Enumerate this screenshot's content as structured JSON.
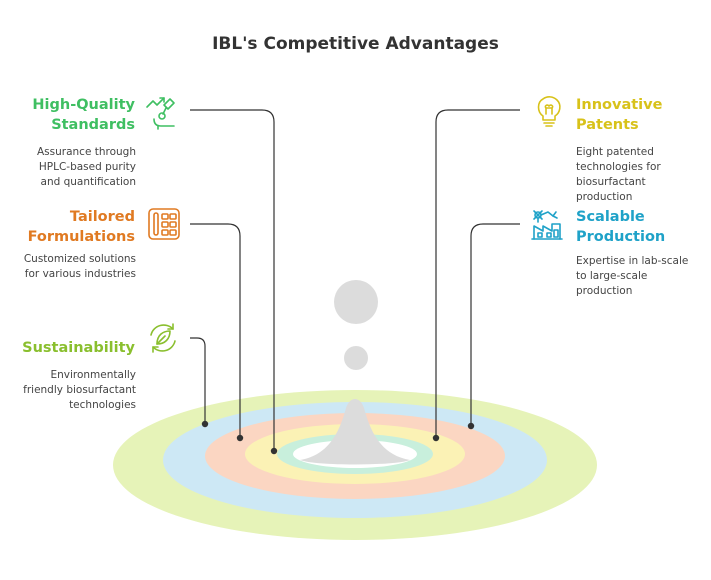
{
  "title": "IBL's Competitive Advantages",
  "colors": {
    "green": "#3fbf62",
    "orange": "#e07a22",
    "lime": "#8abf2e",
    "yellow": "#d8c21a",
    "blue": "#1fa2c8",
    "ring_outer": "#e6f3b8",
    "ring_blue": "#cde8f5",
    "ring_orange": "#fbd6c2",
    "ring_yellow": "#fbf2b5",
    "ring_mint": "#c8efdc",
    "drop": "#dcdcdc"
  },
  "items": {
    "quality": {
      "title_line1": "High-Quality",
      "title_line2": "Standards",
      "desc_line1": "Assurance through",
      "desc_line2": "HPLC-based purity",
      "desc_line3": "and quantification",
      "icon": "microscope-icon"
    },
    "formulations": {
      "title_line1": "Tailored",
      "title_line2": "Formulations",
      "desc_line1": "Customized solutions",
      "desc_line2": "for various industries",
      "icon": "palette-icon"
    },
    "sustainability": {
      "title_line1": "Sustainability",
      "desc_line1": "Environmentally",
      "desc_line2": "friendly biosurfactant",
      "desc_line3": "technologies",
      "icon": "recycle-leaf-icon"
    },
    "patents": {
      "title_line1": "Innovative",
      "title_line2": "Patents",
      "desc_line1": "Eight patented",
      "desc_line2": "technologies for",
      "desc_line3": "biosurfactant",
      "desc_line4": "production",
      "icon": "lightbulb-icon"
    },
    "production": {
      "title_line1": "Scalable",
      "title_line2": "Production",
      "desc_line1": "Expertise in lab-scale",
      "desc_line2": "to large-scale",
      "desc_line3": "production",
      "icon": "factory-icon"
    }
  }
}
